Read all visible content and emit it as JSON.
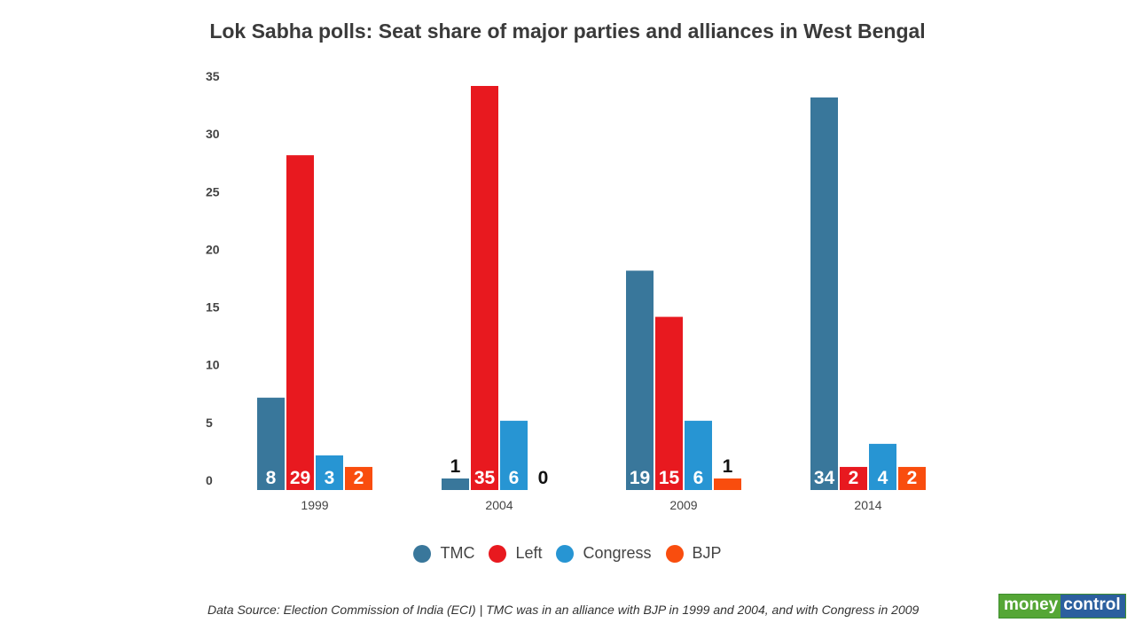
{
  "chart_data": {
    "type": "bar",
    "title": "Lok Sabha polls: Seat share of major parties and alliances in West Bengal",
    "categories": [
      "1999",
      "2004",
      "2009",
      "2014"
    ],
    "series": [
      {
        "name": "TMC",
        "color": "#39779b",
        "values": [
          8,
          1,
          19,
          34
        ]
      },
      {
        "name": "Left",
        "color": "#e8191f",
        "values": [
          29,
          35,
          15,
          2
        ]
      },
      {
        "name": "Congress",
        "color": "#2795d3",
        "values": [
          3,
          6,
          6,
          4
        ]
      },
      {
        "name": "BJP",
        "color": "#f94d0e",
        "values": [
          2,
          0,
          1,
          2
        ]
      }
    ],
    "ylim": [
      0,
      35
    ],
    "yticks": [
      0,
      5,
      10,
      15,
      20,
      25,
      30,
      35
    ],
    "xlabel": "",
    "ylabel": "",
    "legend_position": "bottom-center",
    "source": "Data Source: Election Commission of India (ECI) | TMC was in an alliance with BJP in 1999 and 2004, and with Congress in 2009"
  },
  "logo": {
    "part1": "money",
    "part2": "control"
  }
}
